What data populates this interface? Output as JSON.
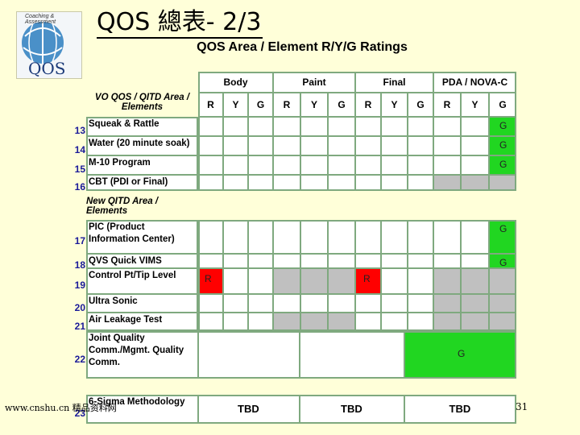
{
  "slide": {
    "title": "QOS 總表- 2/3",
    "subtitle": "QOS Area / Element R/Y/G Ratings",
    "logo_top_text": "Coaching & Assessment",
    "logo_bottom_text": "QOS",
    "footer_left": "www.cnshu.cn 精品资料网",
    "page_number": "31"
  },
  "table": {
    "groups": [
      "Body",
      "Paint",
      "Final",
      "PDA / NOVA-C"
    ],
    "col_letters": [
      "R",
      "Y",
      "G"
    ],
    "section1_header": "VO QOS / QITD Area / Elements",
    "section2_header": "New QITD Area / Elements",
    "rows": [
      {
        "num": "13",
        "label": "Squeak & Rattle",
        "marks": {
          "pda_g": "G"
        }
      },
      {
        "num": "14",
        "label": "Water (20 minute soak)",
        "marks": {
          "pda_g": "G"
        }
      },
      {
        "num": "15",
        "label": "M-10 Program",
        "marks": {
          "pda_g": "G"
        }
      },
      {
        "num": "16",
        "label": "CBT (PDI or Final)",
        "marks": {}
      },
      {
        "num": "17",
        "label": "PIC (Product Information Center)",
        "marks": {
          "pda_g": "G"
        }
      },
      {
        "num": "18",
        "label": "QVS Quick VIMS",
        "marks": {
          "pda_g": "G"
        }
      },
      {
        "num": "19",
        "label": "Control Pt/Tip Level",
        "marks": {
          "body_r": "R",
          "final_r": "R"
        }
      },
      {
        "num": "20",
        "label": "Ultra Sonic",
        "marks": {}
      },
      {
        "num": "21",
        "label": "Air Leakage Test",
        "marks": {}
      },
      {
        "num": "22",
        "label": "Joint Quality Comm./Mgmt. Quality Comm.",
        "marks": {
          "merged_g": "G"
        }
      },
      {
        "num": "23",
        "label": "6-Sigma Methodology",
        "marks": {
          "tbd": "TBD"
        }
      }
    ]
  },
  "colors": {
    "red": "#ff0000",
    "green": "#21d621",
    "gray": "#c0c0c0",
    "background": "#ffffd9"
  }
}
